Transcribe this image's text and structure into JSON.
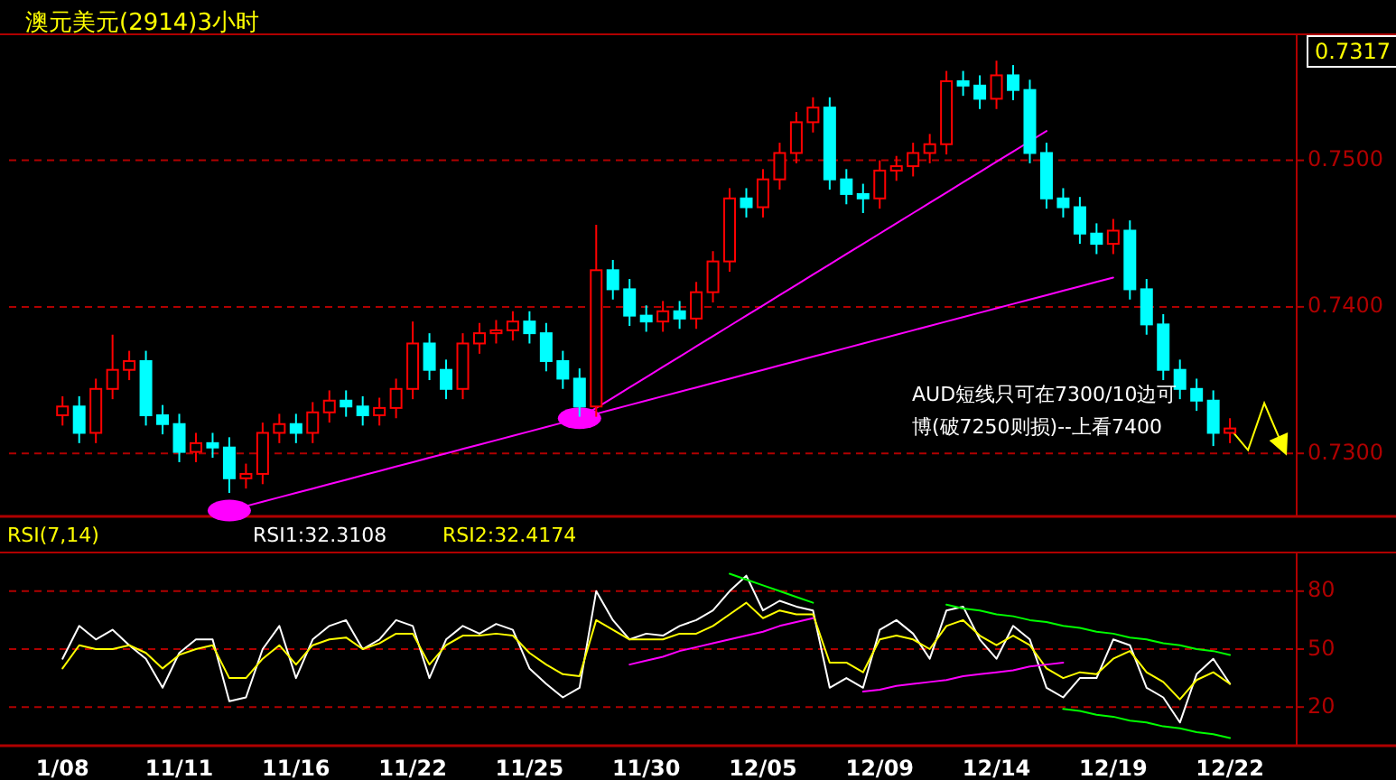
{
  "chart_data": [
    {
      "type": "candlestick",
      "title": "澳元美元(2914)3小时",
      "ylim": [
        0.7257,
        0.7586
      ],
      "grid": "y",
      "yticks": [
        {
          "value": 0.73,
          "label": "0.7300"
        },
        {
          "value": 0.74,
          "label": "0.7400"
        },
        {
          "value": 0.75,
          "label": "0.7500"
        }
      ],
      "annotations": [
        "0.7317",
        "AUD短线只可在7300/10边可",
        "博(破7250则损)--上看7400"
      ],
      "categories": [
        null,
        null,
        null,
        null,
        null,
        null,
        null,
        null,
        null,
        null,
        null,
        null,
        null,
        null,
        null,
        null,
        null,
        null,
        null,
        null,
        null,
        null,
        null,
        null,
        null,
        null,
        null,
        null,
        null,
        null,
        null,
        null,
        null,
        null,
        null,
        null,
        null,
        null,
        null,
        null,
        null,
        null,
        null,
        null,
        null,
        null,
        null,
        null,
        null,
        null,
        null,
        null,
        null,
        null,
        null,
        null,
        null,
        null,
        null,
        null,
        null,
        null,
        null,
        null,
        null,
        null,
        null,
        null,
        null,
        null,
        null
      ],
      "ohlc": [
        [
          0.7326,
          0.7339,
          0.7319,
          0.7332
        ],
        [
          0.7332,
          0.7339,
          0.7307,
          0.7314
        ],
        [
          0.7314,
          0.7351,
          0.7307,
          0.7344
        ],
        [
          0.7344,
          0.7381,
          0.7337,
          0.7357
        ],
        [
          0.7357,
          0.737,
          0.735,
          0.7363
        ],
        [
          0.7363,
          0.737,
          0.7319,
          0.7326
        ],
        [
          0.7326,
          0.7333,
          0.7313,
          0.732
        ],
        [
          0.732,
          0.7327,
          0.7294,
          0.7301
        ],
        [
          0.7301,
          0.7314,
          0.7294,
          0.7307
        ],
        [
          0.7307,
          0.7314,
          0.7297,
          0.7304
        ],
        [
          0.7304,
          0.7311,
          0.7273,
          0.7283
        ],
        [
          0.7283,
          0.7293,
          0.7276,
          0.7286
        ],
        [
          0.7286,
          0.7321,
          0.7279,
          0.7314
        ],
        [
          0.7314,
          0.7327,
          0.7307,
          0.732
        ],
        [
          0.732,
          0.7327,
          0.7307,
          0.7314
        ],
        [
          0.7314,
          0.7335,
          0.7307,
          0.7328
        ],
        [
          0.7328,
          0.7343,
          0.7321,
          0.7336
        ],
        [
          0.7336,
          0.7343,
          0.7325,
          0.7332
        ],
        [
          0.7332,
          0.7339,
          0.7319,
          0.7326
        ],
        [
          0.7326,
          0.7338,
          0.7319,
          0.7331
        ],
        [
          0.7331,
          0.7351,
          0.7324,
          0.7344
        ],
        [
          0.7344,
          0.739,
          0.7337,
          0.7375
        ],
        [
          0.7375,
          0.7382,
          0.735,
          0.7357
        ],
        [
          0.7357,
          0.7364,
          0.7337,
          0.7344
        ],
        [
          0.7344,
          0.7382,
          0.7337,
          0.7375
        ],
        [
          0.7375,
          0.7389,
          0.7368,
          0.7382
        ],
        [
          0.7382,
          0.7391,
          0.7375,
          0.7384
        ],
        [
          0.7384,
          0.7397,
          0.7377,
          0.739
        ],
        [
          0.739,
          0.7397,
          0.7375,
          0.7382
        ],
        [
          0.7382,
          0.7389,
          0.7356,
          0.7363
        ],
        [
          0.7363,
          0.737,
          0.7344,
          0.7351
        ],
        [
          0.7351,
          0.7358,
          0.7325,
          0.7332
        ],
        [
          0.7332,
          0.7456,
          0.7325,
          0.7425
        ],
        [
          0.7425,
          0.7432,
          0.7405,
          0.7412
        ],
        [
          0.7412,
          0.7419,
          0.7387,
          0.7394
        ],
        [
          0.7394,
          0.7401,
          0.7383,
          0.739
        ],
        [
          0.739,
          0.7404,
          0.7383,
          0.7397
        ],
        [
          0.7397,
          0.7404,
          0.7385,
          0.7392
        ],
        [
          0.7392,
          0.7417,
          0.7385,
          0.741
        ],
        [
          0.741,
          0.7438,
          0.7403,
          0.7431
        ],
        [
          0.7431,
          0.7481,
          0.7424,
          0.7474
        ],
        [
          0.7474,
          0.7481,
          0.7461,
          0.7468
        ],
        [
          0.7468,
          0.7494,
          0.7461,
          0.7487
        ],
        [
          0.7487,
          0.7512,
          0.748,
          0.7505
        ],
        [
          0.7505,
          0.7533,
          0.7498,
          0.7526
        ],
        [
          0.7526,
          0.7543,
          0.7519,
          0.7536
        ],
        [
          0.7536,
          0.7543,
          0.748,
          0.7487
        ],
        [
          0.7487,
          0.7494,
          0.747,
          0.7477
        ],
        [
          0.7477,
          0.7484,
          0.7464,
          0.7474
        ],
        [
          0.7474,
          0.75,
          0.7467,
          0.7493
        ],
        [
          0.7493,
          0.7503,
          0.7486,
          0.7496
        ],
        [
          0.7496,
          0.7512,
          0.7489,
          0.7505
        ],
        [
          0.7505,
          0.7518,
          0.7498,
          0.7511
        ],
        [
          0.7511,
          0.7561,
          0.7504,
          0.7554
        ],
        [
          0.7554,
          0.7561,
          0.7544,
          0.7551
        ],
        [
          0.7551,
          0.7558,
          0.7535,
          0.7542
        ],
        [
          0.7542,
          0.7568,
          0.7535,
          0.7558
        ],
        [
          0.7558,
          0.7565,
          0.7541,
          0.7548
        ],
        [
          0.7548,
          0.7555,
          0.7498,
          0.7505
        ],
        [
          0.7505,
          0.7512,
          0.7467,
          0.7474
        ],
        [
          0.7474,
          0.7481,
          0.7461,
          0.7468
        ],
        [
          0.7468,
          0.7475,
          0.7443,
          0.745
        ],
        [
          0.745,
          0.7457,
          0.7436,
          0.7443
        ],
        [
          0.7443,
          0.746,
          0.7436,
          0.7452
        ],
        [
          0.7452,
          0.7459,
          0.7405,
          0.7412
        ],
        [
          0.7412,
          0.7419,
          0.7381,
          0.7388
        ],
        [
          0.7388,
          0.7395,
          0.735,
          0.7357
        ],
        [
          0.7357,
          0.7364,
          0.7337,
          0.7344
        ],
        [
          0.7344,
          0.7351,
          0.7329,
          0.7336
        ],
        [
          0.7336,
          0.7343,
          0.7305,
          0.7314
        ],
        [
          0.7314,
          0.7324,
          0.7307,
          0.7317
        ]
      ],
      "colors": [
        "#ff0000",
        "#00ffff",
        "#ff0000",
        "#ff0000",
        "#ff0000",
        "#00ffff",
        "#00ffff",
        "#00ffff",
        "#ff0000",
        "#00ffff",
        "#00ffff",
        "#ff0000",
        "#ff0000",
        "#ff0000",
        "#00ffff",
        "#ff0000",
        "#ff0000",
        "#00ffff",
        "#00ffff",
        "#ff0000",
        "#ff0000",
        "#ff0000",
        "#00ffff",
        "#00ffff",
        "#ff0000",
        "#ff0000",
        "#ff0000",
        "#ff0000",
        "#00ffff",
        "#00ffff",
        "#00ffff",
        "#00ffff",
        "#ff0000",
        "#00ffff",
        "#00ffff",
        "#00ffff",
        "#ff0000",
        "#00ffff",
        "#ff0000",
        "#ff0000",
        "#ff0000",
        "#00ffff",
        "#ff0000",
        "#ff0000",
        "#ff0000",
        "#ff0000",
        "#00ffff",
        "#00ffff",
        "#00ffff",
        "#ff0000",
        "#ff0000",
        "#ff0000",
        "#ff0000",
        "#ff0000",
        "#00ffff",
        "#00ffff",
        "#ff0000",
        "#00ffff",
        "#00ffff",
        "#00ffff",
        "#00ffff",
        "#00ffff",
        "#00ffff",
        "#ff0000",
        "#00ffff",
        "#00ffff",
        "#00ffff",
        "#00ffff",
        "#00ffff",
        "#00ffff",
        "#ff0000"
      ],
      "series": [
        {
          "type": "line",
          "color": "#ff00ff",
          "values": [
            null,
            null,
            null,
            null,
            null,
            null,
            null,
            null,
            null,
            null,
            0.7261,
            0.7264,
            0.7267,
            0.727,
            0.7273,
            0.7276,
            0.7279,
            0.7282,
            0.7285,
            0.7288,
            0.7291,
            0.7294,
            0.7297,
            0.73,
            0.7303,
            0.7306,
            0.7309,
            0.7312,
            0.7315,
            0.7318,
            0.7321,
            0.7324,
            null,
            null,
            null,
            null,
            null,
            null,
            null,
            null,
            null,
            null,
            null,
            null,
            null,
            null,
            null,
            null,
            null,
            null,
            null,
            null,
            null,
            null,
            null,
            null,
            null,
            null,
            null,
            null,
            null,
            null,
            null,
            null,
            null,
            null,
            null,
            null,
            null,
            null,
            null
          ]
        },
        {
          "type": "line",
          "color": "#ff00ff",
          "values": [
            null,
            null,
            null,
            null,
            null,
            null,
            null,
            null,
            null,
            null,
            null,
            null,
            null,
            null,
            null,
            null,
            null,
            null,
            null,
            null,
            null,
            null,
            null,
            null,
            null,
            null,
            null,
            null,
            null,
            null,
            null,
            0.7324,
            0.7331,
            0.7338,
            0.7345,
            0.7352,
            0.7359,
            0.7366,
            0.7373,
            0.738,
            0.7387,
            0.7394,
            0.7401,
            0.7408,
            0.7415,
            0.7422,
            0.7429,
            0.7436,
            0.7443,
            0.745,
            0.7457,
            0.7464,
            0.7471,
            0.7478,
            0.7485,
            0.7492,
            0.7499,
            0.7506,
            0.7513,
            0.752,
            null,
            null,
            null,
            null,
            null,
            null,
            null,
            null,
            null,
            null,
            null
          ]
        },
        {
          "type": "line",
          "color": "#ff00ff",
          "values": [
            null,
            null,
            null,
            null,
            null,
            null,
            null,
            null,
            null,
            null,
            null,
            null,
            null,
            null,
            null,
            null,
            null,
            null,
            null,
            null,
            null,
            null,
            null,
            null,
            null,
            null,
            null,
            null,
            null,
            null,
            null,
            0.7324,
            0.7327,
            0.733,
            0.7333,
            0.7336,
            0.7339,
            0.7342,
            0.7345,
            0.7348,
            0.7351,
            0.7354,
            0.7357,
            0.736,
            0.7363,
            0.7366,
            0.7369,
            0.7372,
            0.7375,
            0.7378,
            0.7381,
            0.7384,
            0.7387,
            0.739,
            0.7393,
            0.7396,
            0.7399,
            0.7402,
            0.7405,
            0.7408,
            0.7411,
            0.7414,
            0.7417,
            0.742,
            null,
            null,
            null,
            null,
            null,
            null,
            null
          ]
        }
      ]
    },
    {
      "type": "line",
      "title": "RSI(7,14)",
      "ylim": [
        0,
        100
      ],
      "yticks": [
        20,
        50,
        80
      ],
      "grid": "y",
      "legend": "top",
      "categories": [
        "1/08",
        null,
        null,
        null,
        null,
        null,
        null,
        "11/11",
        null,
        null,
        null,
        null,
        null,
        null,
        "11/16",
        null,
        null,
        null,
        null,
        null,
        null,
        "11/22",
        null,
        null,
        null,
        null,
        null,
        null,
        "11/25",
        null,
        null,
        null,
        null,
        null,
        null,
        "11/30",
        null,
        null,
        null,
        null,
        null,
        null,
        "12/05",
        null,
        null,
        null,
        null,
        null,
        null,
        "12/09",
        null,
        null,
        null,
        null,
        null,
        null,
        "12/14",
        null,
        null,
        null,
        null,
        null,
        null,
        "12/19",
        null,
        null,
        null,
        null,
        null,
        null,
        "12/22"
      ],
      "series": [
        {
          "name": "RSI1:32.3108",
          "color": "#ffffff",
          "values": [
            45,
            62,
            55,
            60,
            52,
            45,
            30,
            48,
            55,
            55,
            23,
            25,
            50,
            62,
            35,
            55,
            62,
            65,
            50,
            55,
            65,
            62,
            35,
            55,
            62,
            58,
            63,
            60,
            40,
            32,
            25,
            30,
            80,
            65,
            55,
            58,
            57,
            62,
            65,
            70,
            80,
            88,
            70,
            75,
            72,
            70,
            30,
            35,
            30,
            60,
            65,
            58,
            45,
            70,
            72,
            55,
            45,
            62,
            55,
            30,
            25,
            35,
            35,
            55,
            52,
            30,
            25,
            12,
            37,
            45,
            32
          ]
        },
        {
          "name": "RSI2:32.4174",
          "color": "#ffff00",
          "values": [
            40,
            52,
            50,
            50,
            52,
            48,
            40,
            47,
            50,
            52,
            35,
            35,
            45,
            52,
            42,
            52,
            55,
            56,
            50,
            53,
            58,
            58,
            42,
            52,
            57,
            57,
            58,
            57,
            48,
            42,
            37,
            36,
            65,
            60,
            55,
            55,
            55,
            58,
            58,
            62,
            68,
            74,
            66,
            70,
            68,
            68,
            43,
            43,
            38,
            55,
            57,
            55,
            50,
            62,
            65,
            57,
            52,
            57,
            52,
            40,
            35,
            38,
            37,
            45,
            49,
            38,
            33,
            24,
            34,
            38,
            32
          ]
        },
        {
          "type": "line",
          "color": "#ff00ff",
          "values": [
            null,
            null,
            null,
            null,
            null,
            null,
            null,
            null,
            null,
            null,
            null,
            null,
            null,
            null,
            null,
            null,
            null,
            null,
            null,
            null,
            null,
            null,
            null,
            null,
            null,
            null,
            null,
            null,
            null,
            null,
            null,
            null,
            null,
            null,
            42,
            44,
            46,
            49,
            51,
            53,
            55,
            57,
            59,
            62,
            64,
            66,
            null,
            null,
            null,
            null,
            null,
            null,
            null,
            null,
            null,
            null,
            null,
            null,
            null,
            null,
            null,
            null,
            null,
            null,
            null,
            null,
            null,
            null,
            null,
            null,
            null
          ]
        },
        {
          "type": "line",
          "color": "#00ff00",
          "values": [
            null,
            null,
            null,
            null,
            null,
            null,
            null,
            null,
            null,
            null,
            null,
            null,
            null,
            null,
            null,
            null,
            null,
            null,
            null,
            null,
            null,
            null,
            null,
            null,
            null,
            null,
            null,
            null,
            null,
            null,
            null,
            null,
            null,
            null,
            null,
            null,
            null,
            null,
            null,
            null,
            89,
            86,
            83,
            80,
            77,
            74,
            null,
            null,
            null,
            null,
            null,
            null,
            null,
            null,
            null,
            null,
            null,
            null,
            null,
            null,
            null,
            null,
            null,
            null,
            null,
            null,
            null,
            null,
            null,
            null,
            null
          ]
        },
        {
          "type": "line",
          "color": "#ff00ff",
          "values": [
            null,
            null,
            null,
            null,
            null,
            null,
            null,
            null,
            null,
            null,
            null,
            null,
            null,
            null,
            null,
            null,
            null,
            null,
            null,
            null,
            null,
            null,
            null,
            null,
            null,
            null,
            null,
            null,
            null,
            null,
            null,
            null,
            null,
            null,
            null,
            null,
            null,
            null,
            null,
            null,
            null,
            null,
            null,
            null,
            null,
            null,
            null,
            null,
            28,
            29,
            31,
            32,
            33,
            34,
            36,
            37,
            38,
            39,
            41,
            42,
            43,
            null,
            null,
            null,
            null,
            null,
            null,
            null,
            null,
            null,
            null
          ]
        },
        {
          "type": "line",
          "color": "#00ff00",
          "values": [
            null,
            null,
            null,
            null,
            null,
            null,
            null,
            null,
            null,
            null,
            null,
            null,
            null,
            null,
            null,
            null,
            null,
            null,
            null,
            null,
            null,
            null,
            null,
            null,
            null,
            null,
            null,
            null,
            null,
            null,
            null,
            null,
            null,
            null,
            null,
            null,
            null,
            null,
            null,
            null,
            null,
            null,
            null,
            null,
            null,
            null,
            null,
            null,
            null,
            null,
            null,
            null,
            null,
            73,
            71,
            70,
            68,
            67,
            65,
            64,
            62,
            61,
            59,
            58,
            56,
            55,
            53,
            52,
            50,
            49,
            47
          ]
        },
        {
          "type": "line",
          "color": "#00ff00",
          "values": [
            null,
            null,
            null,
            null,
            null,
            null,
            null,
            null,
            null,
            null,
            null,
            null,
            null,
            null,
            null,
            null,
            null,
            null,
            null,
            null,
            null,
            null,
            null,
            null,
            null,
            null,
            null,
            null,
            null,
            null,
            null,
            null,
            null,
            null,
            null,
            null,
            null,
            null,
            null,
            null,
            null,
            null,
            null,
            null,
            null,
            null,
            null,
            null,
            null,
            null,
            null,
            null,
            null,
            null,
            null,
            null,
            null,
            null,
            null,
            null,
            19,
            18,
            16,
            15,
            13,
            12,
            10,
            9,
            7,
            6,
            4
          ]
        }
      ]
    }
  ]
}
